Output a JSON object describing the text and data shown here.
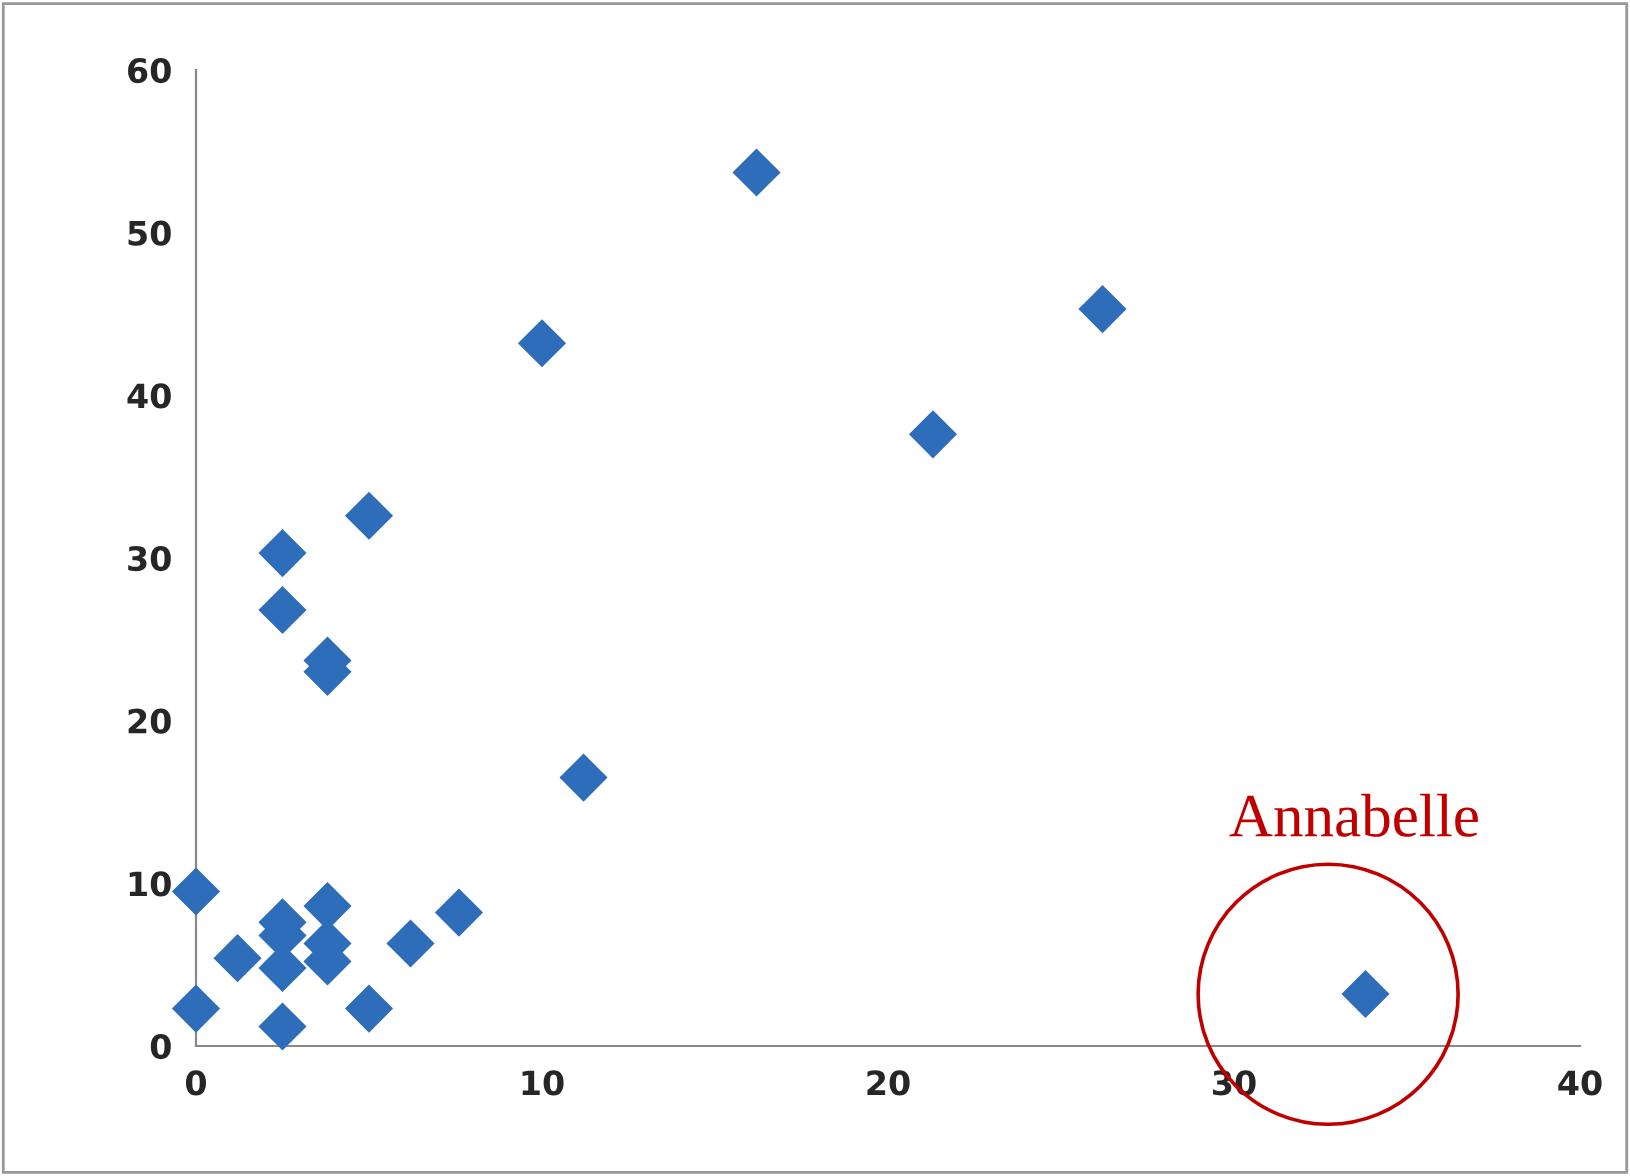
{
  "chart_data": {
    "type": "scatter",
    "x": [
      16.2,
      26.2,
      10.0,
      21.3,
      5.0,
      2.5,
      2.5,
      3.8,
      3.8,
      11.2,
      0,
      3.8,
      7.6,
      2.5,
      2.5,
      3.8,
      6.2,
      1.2,
      3.8,
      2.5,
      0,
      5.0,
      2.5,
      33.8
    ],
    "series": [
      {
        "color": "#2e6db9",
        "values": [
          53.7,
          45.3,
          43.2,
          37.6,
          32.6,
          30.3,
          26.8,
          23.7,
          23.0,
          16.5,
          9.5,
          8.6,
          8.2,
          7.6,
          6.8,
          6.3,
          6.3,
          5.4,
          5.2,
          4.8,
          2.3,
          2.3,
          1.2,
          3.2
        ]
      }
    ],
    "marker": "diamond",
    "xlim": [
      0,
      40
    ],
    "xticks": [
      0,
      10,
      20,
      30,
      40
    ],
    "ylim": [
      0,
      60
    ],
    "yticks": [
      0,
      10,
      20,
      30,
      40,
      50,
      60
    ],
    "grid": false,
    "annotations": [
      "Annabelle"
    ]
  }
}
